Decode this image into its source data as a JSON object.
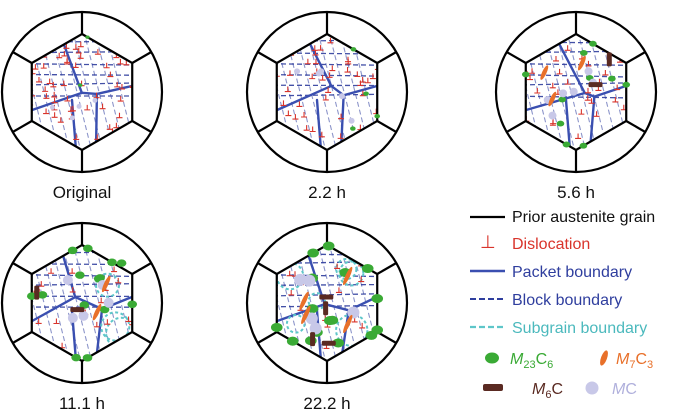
{
  "panels": [
    {
      "label": "Original",
      "stage": 0
    },
    {
      "label": "2.2 h",
      "stage": 1
    },
    {
      "label": "5.6 h",
      "stage": 2
    },
    {
      "label": "11.1 h",
      "stage": 3
    },
    {
      "label": "22.2 h",
      "stage": 4
    }
  ],
  "legend": {
    "prior_austenite_grain": "Prior austenite grain",
    "dislocation": "Dislocation",
    "dislocation_symbol": "⊥",
    "packet_boundary": "Packet boundary",
    "block_boundary": "Block boundary",
    "subgrain_boundary": "Subgrain boundary",
    "m23c6": {
      "base": "M",
      "sub": "23",
      "mid": "C",
      "sub2": "6"
    },
    "m7c3": {
      "base": "M",
      "sub": "7",
      "mid": "C",
      "sub2": "3"
    },
    "m6c": {
      "base": "M",
      "sub": "6",
      "mid": "C",
      "sub2": ""
    },
    "mc": {
      "base": "M",
      "sub": "",
      "mid": "C",
      "sub2": ""
    }
  },
  "colors": {
    "grain": "#000000",
    "dislocation": "#d9342b",
    "packet": "#3a4fb0",
    "block": "#2f3e9e",
    "subgrain": "#5ec6c9",
    "m23c6": "#3aaa35",
    "m7c3": "#e8702a",
    "m6c": "#5a2a22",
    "mc": "#c8c8e8"
  }
}
